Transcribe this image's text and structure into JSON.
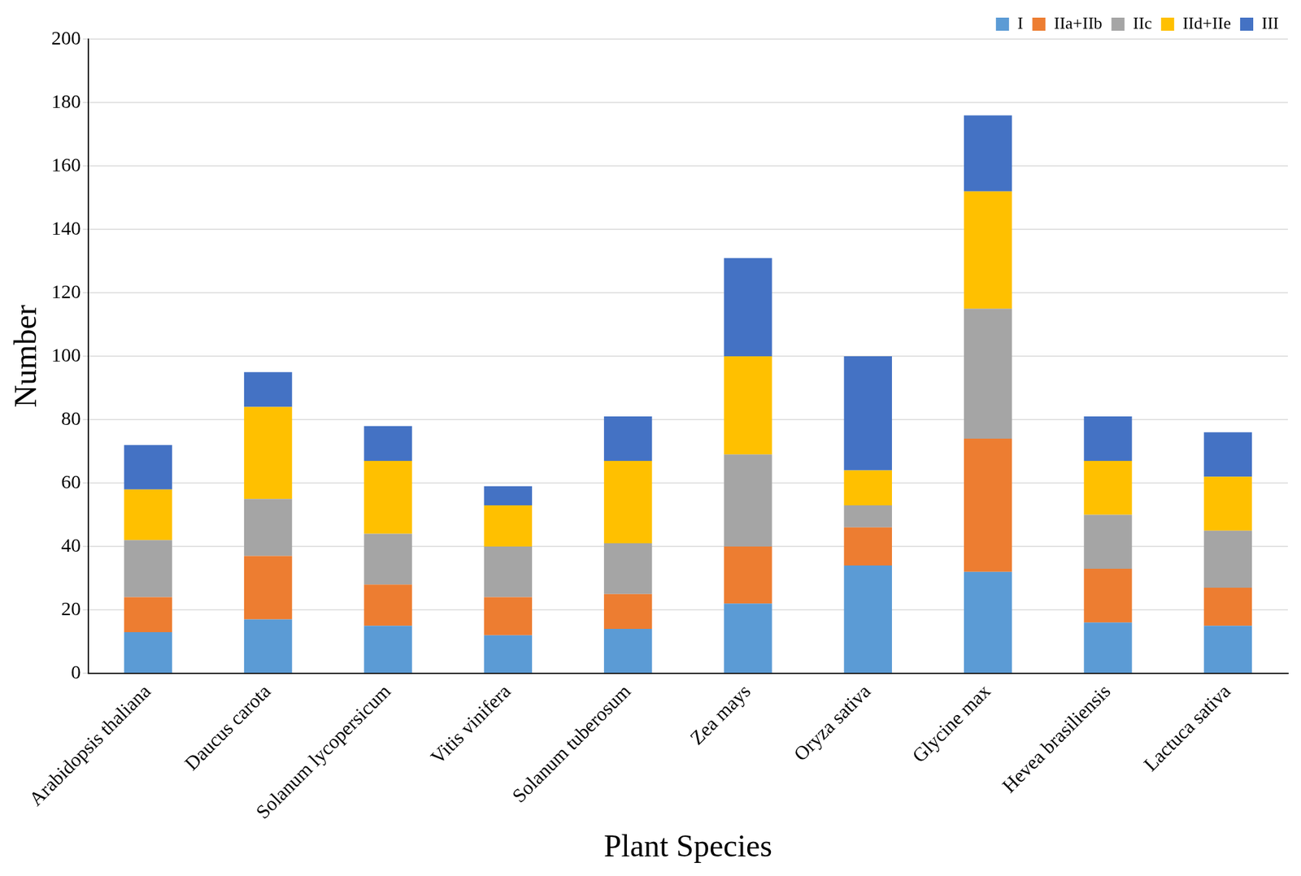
{
  "chart_data": {
    "type": "bar",
    "x_label": "Plant Species",
    "y_label": "Number",
    "categories": [
      "Arabidopsis thaliana",
      "Daucus carota",
      "Solanum lycopersicum",
      "Vitis vinifera",
      "Solanum tuberosum",
      "Zea mays",
      "Oryza sativa",
      "Glycine max",
      "Hevea brasiliensis",
      "Lactuca sativa"
    ],
    "series": [
      {
        "name": "I",
        "color": "#5b9bd5",
        "values": [
          13,
          17,
          15,
          12,
          14,
          22,
          34,
          32,
          16,
          15
        ]
      },
      {
        "name": "IIa+IIb",
        "color": "#ed7d31",
        "values": [
          11,
          20,
          13,
          12,
          11,
          18,
          12,
          42,
          17,
          12
        ]
      },
      {
        "name": "IIc",
        "color": "#a5a5a5",
        "values": [
          18,
          18,
          16,
          16,
          16,
          29,
          7,
          41,
          17,
          18
        ]
      },
      {
        "name": "IId+IIe",
        "color": "#ffc000",
        "values": [
          16,
          29,
          23,
          13,
          26,
          31,
          11,
          37,
          17,
          17
        ]
      },
      {
        "name": "III",
        "color": "#4472c4",
        "values": [
          14,
          11,
          11,
          6,
          14,
          31,
          36,
          24,
          14,
          14
        ]
      }
    ],
    "stacked": true,
    "ylim": [
      0,
      200
    ],
    "yticks": [
      0,
      20,
      40,
      60,
      80,
      100,
      120,
      140,
      160,
      180,
      200
    ],
    "grid": true,
    "legend": "upper right"
  }
}
